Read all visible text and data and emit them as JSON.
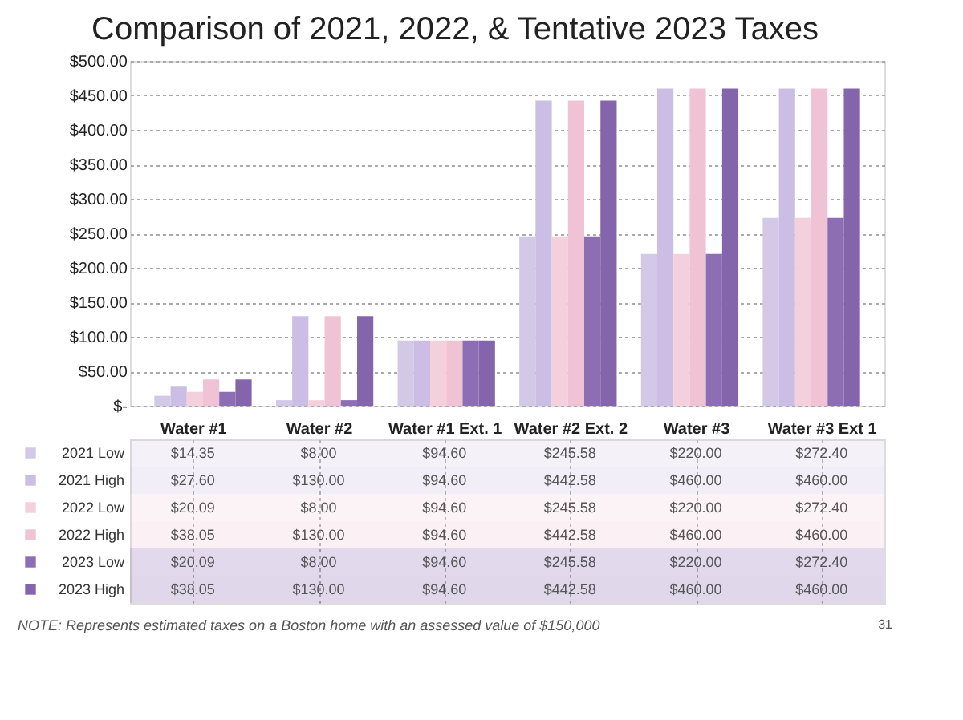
{
  "chart_data": {
    "type": "bar",
    "title": "Comparison of 2021, 2022, & Tentative 2023 Taxes",
    "categories": [
      "Water #1",
      "Water #2",
      "Water #1 Ext. 1",
      "Water #2 Ext. 2",
      "Water #3",
      "Water #3 Ext 1"
    ],
    "series": [
      {
        "name": "2021 Low",
        "color": "#d3c8e6",
        "values": [
          14.35,
          8.0,
          94.6,
          245.58,
          220.0,
          272.4
        ],
        "value_labels": [
          "$14.35",
          "$8.00",
          "$94.60",
          "$245.58",
          "$220.00",
          "$272.40"
        ]
      },
      {
        "name": "2021 High",
        "color": "#cbbde3",
        "values": [
          27.6,
          130.0,
          94.6,
          442.58,
          460.0,
          460.0
        ],
        "value_labels": [
          "$27.60",
          "$130.00",
          "$94.60",
          "$442.58",
          "$460.00",
          "$460.00"
        ]
      },
      {
        "name": "2022 Low",
        "color": "#f3d0dc",
        "values": [
          20.09,
          8.0,
          94.6,
          245.58,
          220.0,
          272.4
        ],
        "value_labels": [
          "$20.09",
          "$8.00",
          "$94.60",
          "$245.58",
          "$220.00",
          "$272.40"
        ]
      },
      {
        "name": "2022 High",
        "color": "#f0c3d4",
        "values": [
          38.05,
          130.0,
          94.6,
          442.58,
          460.0,
          460.0
        ],
        "value_labels": [
          "$38.05",
          "$130.00",
          "$94.60",
          "$442.58",
          "$460.00",
          "$460.00"
        ]
      },
      {
        "name": "2023 Low",
        "color": "#8d6db3",
        "values": [
          20.09,
          8.0,
          94.6,
          245.58,
          220.0,
          272.4
        ],
        "value_labels": [
          "$20.09",
          "$8.00",
          "$94.60",
          "$245.58",
          "$220.00",
          "$272.40"
        ]
      },
      {
        "name": "2023 High",
        "color": "#8464ab",
        "values": [
          38.05,
          130.0,
          94.6,
          442.58,
          460.0,
          460.0
        ],
        "value_labels": [
          "$38.05",
          "$130.00",
          "$94.60",
          "$442.58",
          "$460.00",
          "$460.00"
        ]
      }
    ],
    "ylim": [
      0,
      500
    ],
    "yticks": [
      {
        "value": 0,
        "label": "$-"
      },
      {
        "value": 50,
        "label": "$50.00"
      },
      {
        "value": 100,
        "label": "$100.00"
      },
      {
        "value": 150,
        "label": "$150.00"
      },
      {
        "value": 200,
        "label": "$200.00"
      },
      {
        "value": 250,
        "label": "$250.00"
      },
      {
        "value": 300,
        "label": "$300.00"
      },
      {
        "value": 350,
        "label": "$350.00"
      },
      {
        "value": 400,
        "label": "$400.00"
      },
      {
        "value": 450,
        "label": "$450.00"
      },
      {
        "value": 500,
        "label": "$500.00"
      }
    ],
    "grid": "y",
    "legend": "bottom",
    "annotations": [
      "NOTE: Represents estimated taxes on a Boston home with an assessed value of $150,000",
      "31"
    ]
  }
}
